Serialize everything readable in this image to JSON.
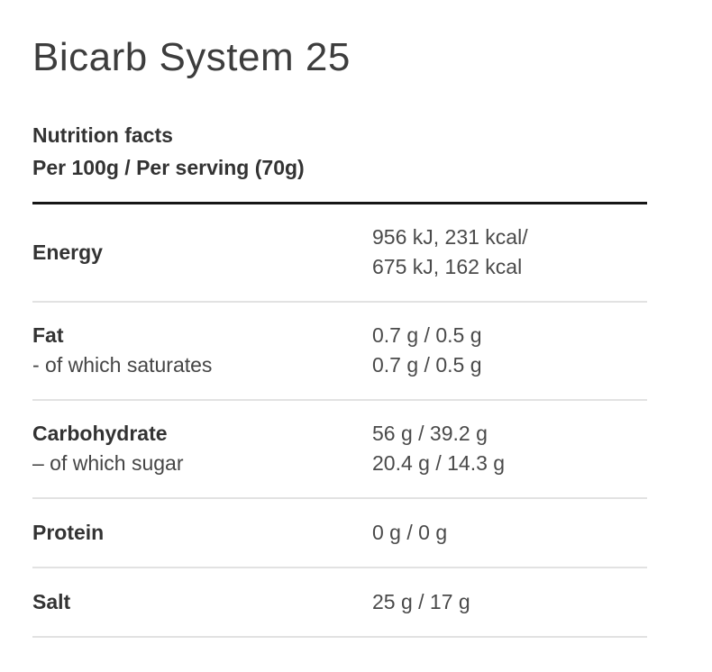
{
  "page": {
    "title": "Bicarb System 25"
  },
  "nutrition": {
    "heading": "Nutrition facts",
    "subheading": "Per 100g / Per serving (70g)",
    "rows": [
      {
        "label": "Energy",
        "value": "956 kJ, 231 kcal/",
        "value2": "675 kJ, 162 kcal"
      },
      {
        "label": "Fat",
        "value": "0.7 g / 0.5 g",
        "sublabel": "- of which saturates",
        "subvalue": "0.7 g / 0.5 g"
      },
      {
        "label": "Carbohydrate",
        "value": "56 g / 39.2 g",
        "sublabel": "– of which sugar",
        "subvalue": "20.4 g / 14.3 g"
      },
      {
        "label": "Protein",
        "value": "0 g / 0 g"
      },
      {
        "label": "Salt",
        "value": "25 g / 17 g"
      }
    ]
  },
  "colors": {
    "background": "#ffffff",
    "text_primary": "#3a3a3a",
    "text_value": "#4a4a4a",
    "rule_heavy": "#161616",
    "rule_light": "#e2e2e2"
  }
}
